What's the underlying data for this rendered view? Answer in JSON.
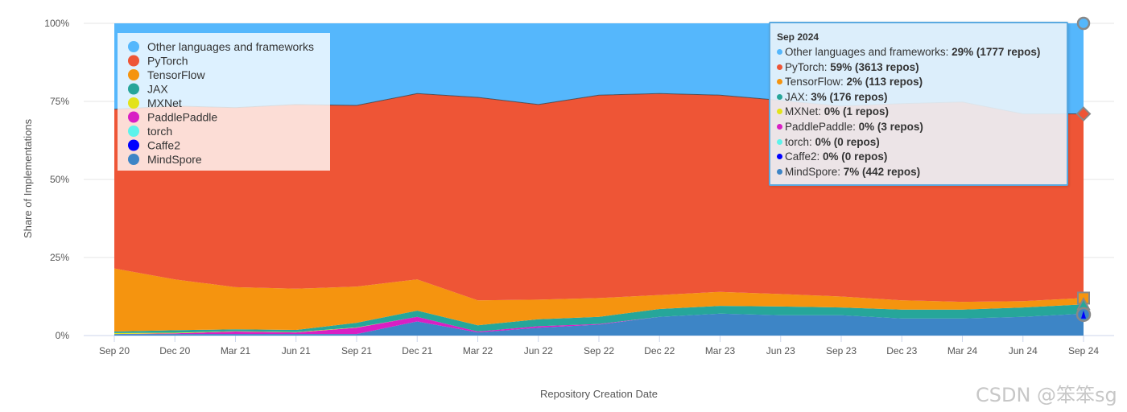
{
  "chart_data": {
    "type": "area",
    "stacking": "percent",
    "xlabel": "Repository Creation Date",
    "ylabel": "Share of Implementations",
    "categories": [
      "Sep 20",
      "Dec 20",
      "Mar 21",
      "Jun 21",
      "Sep 21",
      "Dec 21",
      "Mar 22",
      "Jun 22",
      "Sep 22",
      "Dec 22",
      "Mar 23",
      "Jun 23",
      "Sep 23",
      "Dec 23",
      "Mar 24",
      "Jun 24",
      "Sep 24"
    ],
    "y_ticks": [
      "0%",
      "25%",
      "50%",
      "75%",
      "100%"
    ],
    "ylim": [
      0,
      100
    ],
    "grid": true,
    "legend_position": "top-left",
    "series": [
      {
        "name": "MindSpore",
        "color": "#3d85c6",
        "values": [
          0.5,
          0.5,
          0.5,
          0.5,
          0.5,
          4.5,
          1,
          2.5,
          3.5,
          6,
          7,
          6.5,
          6.5,
          5.5,
          5.5,
          6,
          7
        ]
      },
      {
        "name": "Caffe2",
        "color": "#0000ff",
        "values": [
          0,
          0,
          0,
          0,
          0,
          0,
          0,
          0,
          0,
          0,
          0,
          0,
          0,
          0,
          0,
          0,
          0
        ]
      },
      {
        "name": "torch",
        "color": "#5cf3eb",
        "values": [
          0,
          0,
          0,
          0,
          0,
          0,
          0,
          0,
          0,
          0,
          0,
          0,
          0,
          0,
          0,
          0,
          0
        ]
      },
      {
        "name": "PaddlePaddle",
        "color": "#d81fc4",
        "values": [
          0,
          0.2,
          0.8,
          0.5,
          2,
          1.5,
          0.3,
          0.5,
          0.2,
          0,
          0,
          0,
          0,
          0,
          0,
          0,
          0
        ]
      },
      {
        "name": "MXNet",
        "color": "#e3e31a",
        "values": [
          0.3,
          0.2,
          0.1,
          0.1,
          0.1,
          0,
          0,
          0,
          0,
          0,
          0,
          0,
          0,
          0,
          0,
          0,
          0
        ]
      },
      {
        "name": "JAX",
        "color": "#26a69a",
        "values": [
          0.5,
          0.8,
          0.6,
          0.7,
          1.5,
          2,
          2,
          2.2,
          2.3,
          2.5,
          2.5,
          2.8,
          2.5,
          2.8,
          2.8,
          3,
          3
        ]
      },
      {
        "name": "TensorFlow",
        "color": "#f5940f",
        "values": [
          20.2,
          16.3,
          13.5,
          13.2,
          11.6,
          10,
          8,
          6.3,
          6,
          4.5,
          4.5,
          4,
          3.5,
          3,
          2.5,
          2,
          2
        ]
      },
      {
        "name": "PyTorch",
        "color": "#ee5536",
        "values": [
          51,
          55.5,
          57.5,
          59,
          58,
          59.5,
          65,
          62.5,
          65,
          64.5,
          63,
          62,
          61,
          63,
          64,
          60,
          59
        ]
      },
      {
        "name": "Other languages and frameworks",
        "color": "#55b7fc",
        "values": [
          27.5,
          26.5,
          27,
          26,
          26.3,
          22.5,
          23.7,
          26,
          23,
          22.5,
          23,
          24.7,
          26.5,
          25.7,
          25.2,
          29,
          29
        ]
      }
    ],
    "legend_order": [
      "Other languages and frameworks",
      "PyTorch",
      "TensorFlow",
      "JAX",
      "MXNet",
      "PaddlePaddle",
      "torch",
      "Caffe2",
      "MindSpore"
    ],
    "tooltip": {
      "title": "Sep 2024",
      "rows": [
        {
          "name": "Other languages and frameworks",
          "color": "#55b7fc",
          "value": "29% (1777 repos)"
        },
        {
          "name": "PyTorch",
          "color": "#ee5536",
          "value": "59% (3613 repos)"
        },
        {
          "name": "TensorFlow",
          "color": "#f5940f",
          "value": "2% (113 repos)"
        },
        {
          "name": "JAX",
          "color": "#26a69a",
          "value": "3% (176 repos)"
        },
        {
          "name": "MXNet",
          "color": "#e3e31a",
          "value": "0% (1 repos)"
        },
        {
          "name": "PaddlePaddle",
          "color": "#d81fc4",
          "value": "0% (3 repos)"
        },
        {
          "name": "torch",
          "color": "#5cf3eb",
          "value": "0% (0 repos)"
        },
        {
          "name": "Caffe2",
          "color": "#0000ff",
          "value": "0% (0 repos)"
        },
        {
          "name": "MindSpore",
          "color": "#3d85c6",
          "value": "7% (442 repos)"
        }
      ]
    }
  },
  "watermark": "CSDN @笨笨sg"
}
